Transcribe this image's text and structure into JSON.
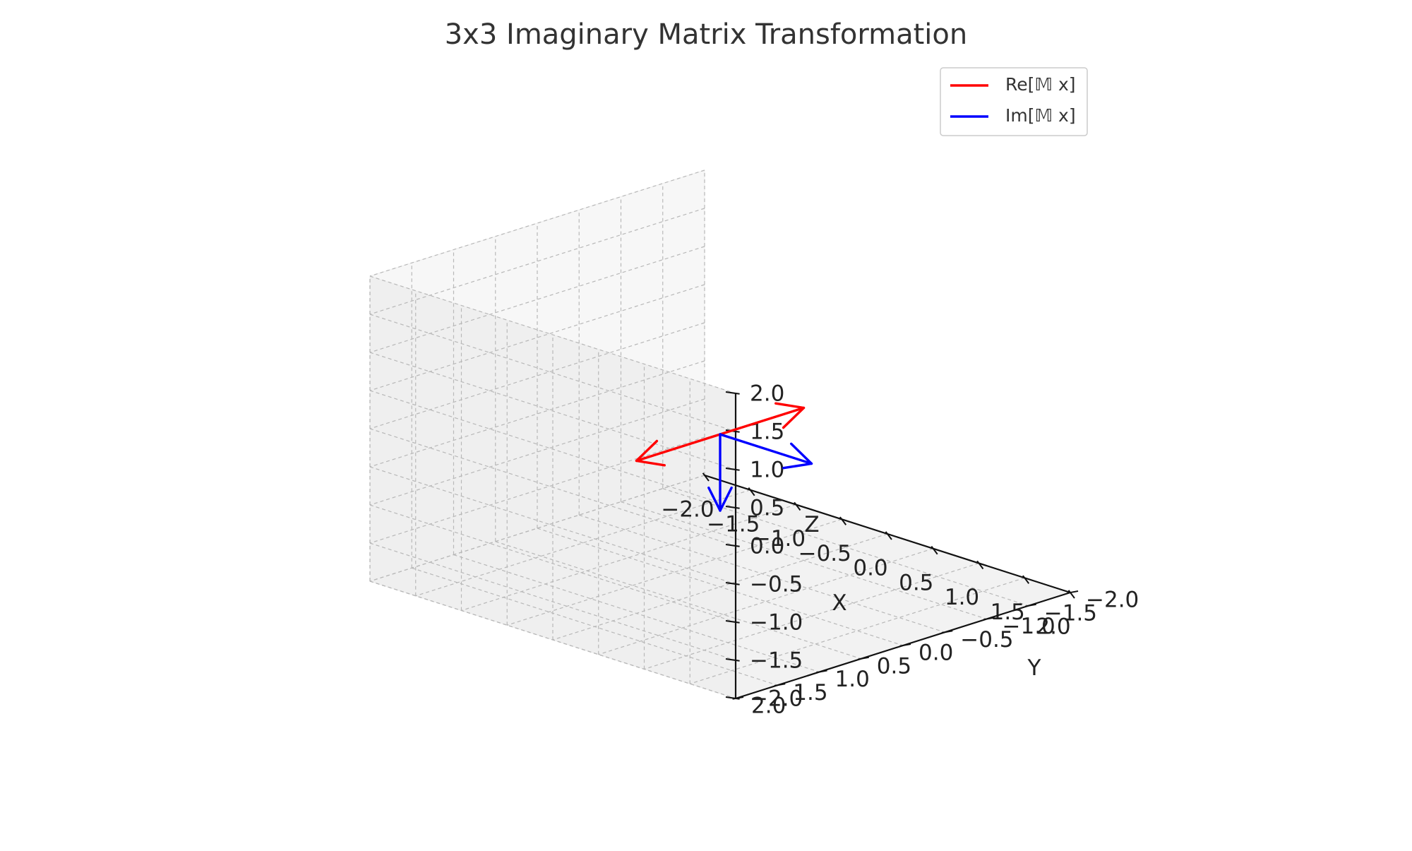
{
  "chart_data": {
    "type": "line",
    "projection": "3d",
    "title": "3x3 Imaginary Matrix Transformation",
    "xlabel": "X",
    "ylabel": "Y",
    "zlabel": "Z",
    "xlim": [
      -2,
      2
    ],
    "ylim": [
      -2,
      2
    ],
    "zlim": [
      -2,
      2
    ],
    "x_ticks": [
      "−2.0",
      "−1.5",
      "−1.0",
      "−0.5",
      "0.0",
      "0.5",
      "1.0",
      "1.5",
      "2.0"
    ],
    "y_ticks": [
      "−2.0",
      "−1.5",
      "−1.0",
      "−0.5",
      "0.0",
      "0.5",
      "1.0",
      "1.5",
      "2.0"
    ],
    "z_ticks": [
      "−2.0",
      "−1.5",
      "−1.0",
      "−0.5",
      "0.0",
      "0.5",
      "1.0",
      "1.5",
      "2.0"
    ],
    "grid": true,
    "legend_position": "top-right",
    "series": [
      {
        "name": "Re[𝕄 x]",
        "color": "#ff0000",
        "vectors": [
          {
            "origin": [
              0,
              0,
              0
            ],
            "end": [
              0,
              -1,
              0
            ]
          },
          {
            "origin": [
              0,
              0,
              0
            ],
            "end": [
              0,
              1,
              0
            ]
          }
        ]
      },
      {
        "name": "Im[𝕄 x]",
        "color": "#0000ff",
        "vectors": [
          {
            "origin": [
              0,
              0,
              0
            ],
            "end": [
              1,
              0,
              0
            ]
          },
          {
            "origin": [
              0,
              0,
              0
            ],
            "end": [
              0,
              0,
              -1
            ]
          }
        ]
      }
    ]
  }
}
